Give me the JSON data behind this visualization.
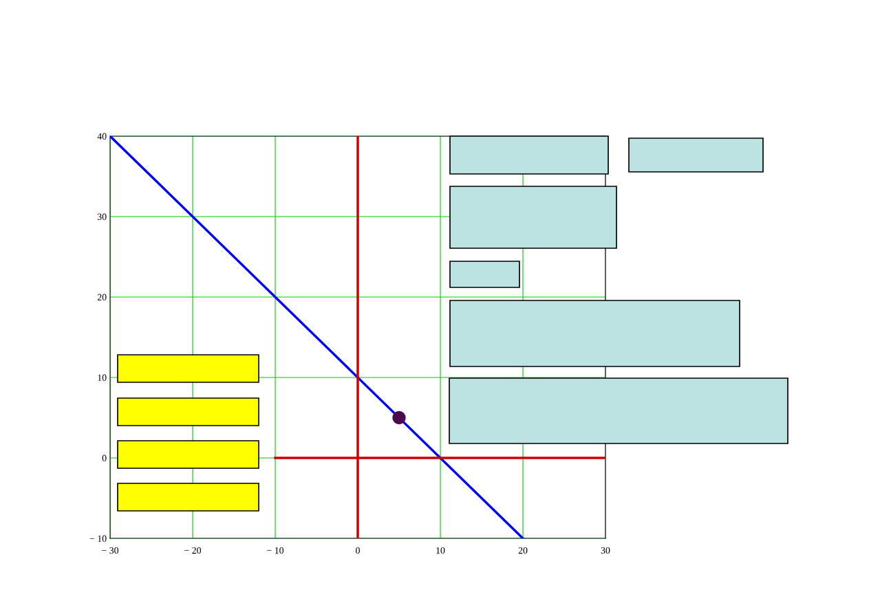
{
  "chart_data": {
    "type": "line",
    "xlim": [
      -30,
      30
    ],
    "ylim": [
      -10,
      40
    ],
    "xticks": [
      {
        "value": -30,
        "label": "− 30"
      },
      {
        "value": -20,
        "label": "− 20"
      },
      {
        "value": -10,
        "label": "− 10"
      },
      0,
      10,
      20,
      30
    ],
    "yticks": [
      {
        "value": -10,
        "label": "− 10"
      },
      0,
      10,
      20,
      30,
      40
    ],
    "grid": true,
    "series": [
      {
        "color": "#0000ff",
        "x": [
          -30,
          20
        ],
        "values": [
          40,
          -10
        ]
      },
      {
        "color": "#cc0000",
        "x": [
          0,
          0
        ],
        "values": [
          -10,
          40
        ]
      },
      {
        "color": "#cc0000",
        "x": [
          -10,
          30
        ],
        "values": [
          0,
          0
        ]
      },
      {
        "type": "scatter",
        "color": "#4b0a4b",
        "x": [
          5
        ],
        "values": [
          5
        ],
        "marker": "circle"
      }
    ]
  }
}
